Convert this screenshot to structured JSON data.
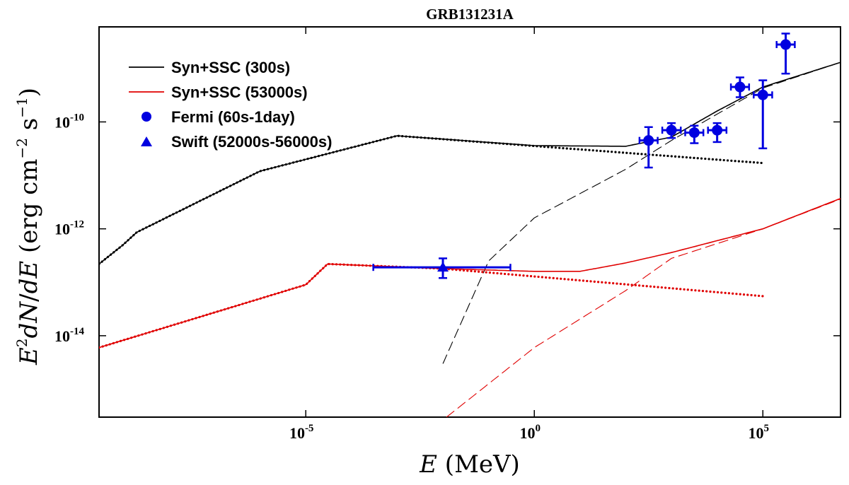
{
  "chart_data": {
    "type": "line",
    "title": "GRB131231A",
    "xlabel": "E (MeV)",
    "ylabel": "E²dN/dE (erg cm⁻² s⁻¹)",
    "xscale": "log",
    "yscale": "log",
    "xlim": [
      3e-10,
      5000000.0
    ],
    "ylim": [
      3e-16,
      6e-09
    ],
    "x_ticks": [
      {
        "label": "10",
        "exp": "-5",
        "value": 1e-05
      },
      {
        "label": "10",
        "exp": "0",
        "value": 1
      },
      {
        "label": "10",
        "exp": "5",
        "value": 100000.0
      }
    ],
    "y_ticks": [
      {
        "label": "10",
        "exp": "-14",
        "value": 1e-14
      },
      {
        "label": "10",
        "exp": "-12",
        "value": 1e-12
      },
      {
        "label": "10",
        "exp": "-10",
        "value": 1e-10
      }
    ],
    "legend_position": "top-left",
    "legend": [
      {
        "label": "Syn+SSC (300s)",
        "marker": "line",
        "color": "#000000"
      },
      {
        "label": "Syn+SSC (53000s)",
        "marker": "line",
        "color": "#e00000"
      },
      {
        "label": "Fermi (60s-1day)",
        "marker": "circle",
        "color": "#0000e0"
      },
      {
        "label": "Swift (52000s-56000s)",
        "marker": "triangle",
        "color": "#0000e0"
      }
    ],
    "series": [
      {
        "name": "Syn+SSC (300s) total",
        "color": "#000000",
        "style": "solid",
        "points": [
          [
            3e-10,
            2.2e-13
          ],
          [
            1e-09,
            5e-13
          ],
          [
            2e-09,
            8.6e-13
          ],
          [
            1e-06,
            1.2e-11
          ],
          [
            0.001,
            5.5e-11
          ],
          [
            1,
            3.6e-11
          ],
          [
            100.0,
            3.5e-11
          ],
          [
            1000.0,
            5.2e-11
          ],
          [
            10000.0,
            1.6e-10
          ],
          [
            100000.0,
            4.5e-10
          ],
          [
            5000000.0,
            1.3e-09
          ]
        ]
      },
      {
        "name": "Syn+SSC (300s) synchrotron",
        "color": "#000000",
        "style": "dotted",
        "points": [
          [
            3e-10,
            2.2e-13
          ],
          [
            1e-09,
            5e-13
          ],
          [
            2e-09,
            8.6e-13
          ],
          [
            1e-06,
            1.2e-11
          ],
          [
            0.001,
            5.5e-11
          ],
          [
            100000.0,
            1.7e-11
          ]
        ]
      },
      {
        "name": "Syn+SSC (300s) SSC",
        "color": "#000000",
        "style": "dashed",
        "points": [
          [
            0.01,
            3e-15
          ],
          [
            0.1,
            2.5e-13
          ],
          [
            1,
            1.6e-12
          ],
          [
            100.0,
            1.3e-11
          ],
          [
            1000.0,
            4.5e-11
          ],
          [
            10000.0,
            1.4e-10
          ],
          [
            100000.0,
            4.3e-10
          ],
          [
            5000000.0,
            1.3e-09
          ]
        ]
      },
      {
        "name": "Syn+SSC (53000s) total",
        "color": "#e00000",
        "style": "solid",
        "points": [
          [
            3e-10,
            6e-15
          ],
          [
            1e-05,
            9e-14
          ],
          [
            3e-05,
            2.2e-13
          ],
          [
            0.01,
            1.8e-13
          ],
          [
            1,
            1.6e-13
          ],
          [
            10.0,
            1.6e-13
          ],
          [
            100.0,
            2.3e-13
          ],
          [
            1000.0,
            3.6e-13
          ],
          [
            100000.0,
            1e-12
          ],
          [
            5000000.0,
            3.7e-12
          ]
        ]
      },
      {
        "name": "Syn+SSC (53000s) synchrotron",
        "color": "#e00000",
        "style": "dotted",
        "points": [
          [
            3e-10,
            6e-15
          ],
          [
            1e-05,
            9e-14
          ],
          [
            3e-05,
            2.2e-13
          ],
          [
            0.01,
            1.8e-13
          ],
          [
            100000.0,
            5.5e-14
          ]
        ]
      },
      {
        "name": "Syn+SSC (53000s) SSC",
        "color": "#e00000",
        "style": "dashed",
        "points": [
          [
            0.012,
            3e-16
          ],
          [
            1,
            6e-15
          ],
          [
            100.0,
            7e-14
          ],
          [
            1000.0,
            2.8e-13
          ],
          [
            100000.0,
            1e-12
          ],
          [
            5000000.0,
            3.6e-12
          ]
        ]
      }
    ],
    "fermi_points": [
      {
        "x": 316,
        "y": 4.5e-11,
        "xlo": 200,
        "xhi": 500,
        "ylo": 1.4e-11,
        "yhi": 8e-11
      },
      {
        "x": 1000,
        "y": 7e-11,
        "xlo": 630,
        "xhi": 1600,
        "ylo": 5e-11,
        "yhi": 9.5e-11
      },
      {
        "x": 3162,
        "y": 6.3e-11,
        "xlo": 2000,
        "xhi": 5000,
        "ylo": 4e-11,
        "yhi": 8.5e-11
      },
      {
        "x": 10000,
        "y": 7e-11,
        "xlo": 6300,
        "xhi": 16000,
        "ylo": 4.2e-11,
        "yhi": 9.5e-11
      },
      {
        "x": 31600,
        "y": 4.5e-10,
        "xlo": 20000,
        "xhi": 50000,
        "ylo": 2.9e-10,
        "yhi": 6.8e-10
      },
      {
        "x": 100000.0,
        "y": 3.2e-10,
        "xlo": 63000,
        "xhi": 160000,
        "ylo": 3.2e-11,
        "yhi": 6e-10
      },
      {
        "x": 316000.0,
        "y": 2.8e-09,
        "xlo": 200000,
        "xhi": 500000,
        "ylo": 8e-10,
        "yhi": 4.5e-09
      }
    ],
    "swift_points": [
      {
        "x": 0.01,
        "y": 1.9e-13,
        "xlo": 0.0003,
        "xhi": 0.3,
        "ylo": 1.2e-13,
        "yhi": 2.8e-13
      }
    ]
  }
}
